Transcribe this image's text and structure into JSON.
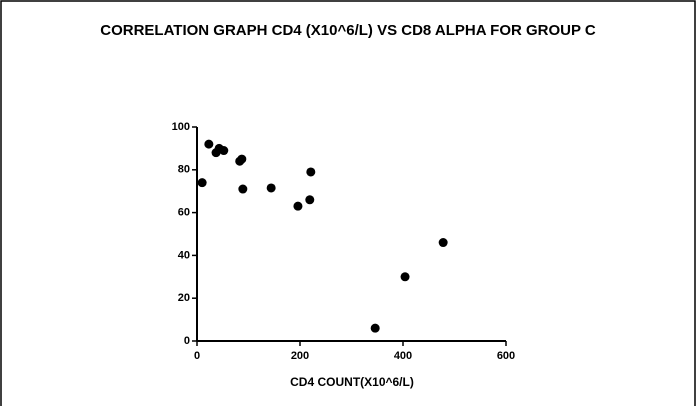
{
  "chart_data": {
    "type": "scatter",
    "title": "CORRELATION GRAPH CD4 (X10^6/L) VS CD8 ALPHA FOR GROUP C",
    "x_label": "CD4 COUNT(X10^6/L)",
    "x": [
      10,
      23,
      37,
      43,
      52,
      83,
      87,
      89,
      144,
      196,
      219,
      221,
      346,
      404,
      478
    ],
    "y": [
      74,
      92,
      88,
      90,
      89,
      84,
      85,
      71,
      71.5,
      63,
      66,
      79,
      6,
      30,
      46
    ],
    "color": "#000000",
    "xlim": [
      0,
      600
    ],
    "xticks": [
      0,
      200,
      400,
      600
    ],
    "ylim": [
      0,
      100
    ],
    "yticks": [
      0,
      20,
      40,
      60,
      80,
      100
    ]
  }
}
